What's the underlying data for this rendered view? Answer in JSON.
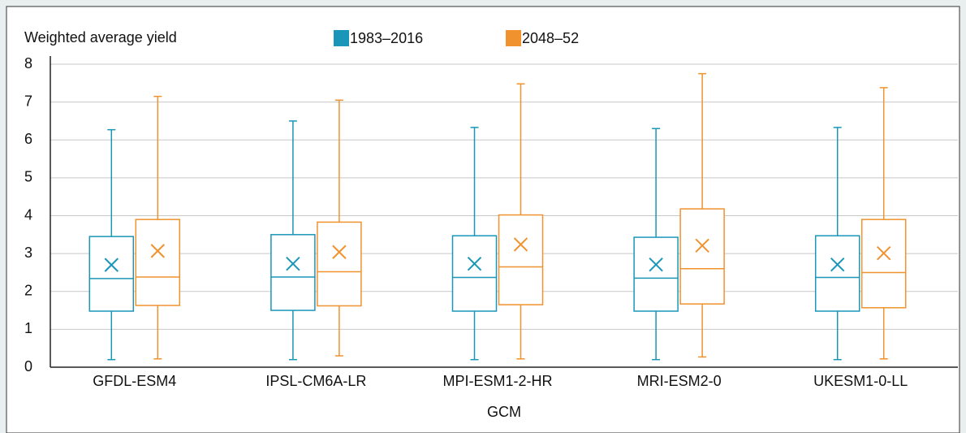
{
  "chart_data": {
    "type": "box",
    "y_label": "Weighted average yield",
    "x_label": "GCM",
    "categories": [
      "GFDL-ESM4",
      "IPSL-CM6A-LR",
      "MPI-ESM1-2-HR",
      "MRI-ESM2-0",
      "UKESM1-0-LL"
    ],
    "ylim": [
      0,
      8
    ],
    "yticks": [
      0,
      1,
      2,
      3,
      4,
      5,
      6,
      7,
      8
    ],
    "grid": true,
    "series": [
      {
        "name": "1983–2016",
        "color": "#1a96b8",
        "whislo": [
          0.2,
          0.2,
          0.2,
          0.2,
          0.2
        ],
        "q1": [
          1.48,
          1.5,
          1.48,
          1.48,
          1.48
        ],
        "median": [
          2.34,
          2.38,
          2.37,
          2.35,
          2.37
        ],
        "q3": [
          3.45,
          3.5,
          3.47,
          3.43,
          3.47
        ],
        "whishi": [
          6.27,
          6.5,
          6.33,
          6.3,
          6.33
        ],
        "mean": [
          2.7,
          2.73,
          2.73,
          2.71,
          2.71
        ]
      },
      {
        "name": "2048–52",
        "color": "#f0922e",
        "whislo": [
          0.22,
          0.3,
          0.22,
          0.27,
          0.22
        ],
        "q1": [
          1.63,
          1.62,
          1.65,
          1.67,
          1.57
        ],
        "median": [
          2.38,
          2.52,
          2.65,
          2.6,
          2.5
        ],
        "q3": [
          3.9,
          3.83,
          4.02,
          4.18,
          3.9
        ],
        "whishi": [
          7.15,
          7.05,
          7.48,
          7.75,
          7.38
        ],
        "mean": [
          3.07,
          3.04,
          3.24,
          3.21,
          3.01
        ]
      }
    ]
  }
}
